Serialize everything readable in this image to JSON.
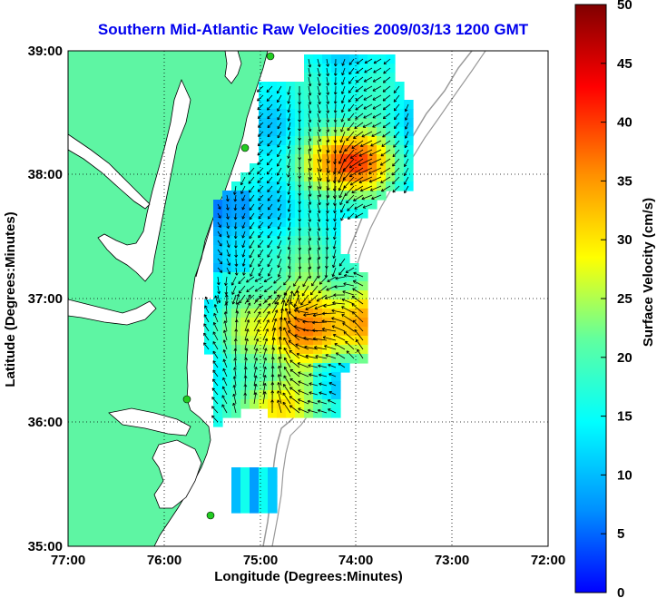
{
  "title": "Southern Mid-Atlantic Raw Velocities 2009/03/13 1200 GMT",
  "xaxis": {
    "label": "Longitude (Degrees:Minutes)",
    "ticks": [
      "77:00",
      "76:00",
      "75:00",
      "74:00",
      "73:00",
      "72:00"
    ],
    "range": [
      -77,
      -72
    ]
  },
  "yaxis": {
    "label": "Latitude (Degrees:Minutes)",
    "ticks": [
      "39:00",
      "38:00",
      "37:00",
      "36:00",
      "35:00"
    ],
    "range": [
      35,
      39
    ]
  },
  "colorbar": {
    "label": "Surface Velocity (cm/s)",
    "ticks": [
      "50",
      "45",
      "40",
      "35",
      "30",
      "25",
      "20",
      "15",
      "10",
      "5",
      "0"
    ],
    "range": [
      0,
      50
    ],
    "colormap": [
      "#0000ff",
      "#0090ff",
      "#00ffff",
      "#60ff9f",
      "#ffff00",
      "#ff9000",
      "#ff0000",
      "#800000"
    ]
  },
  "colors": {
    "land": "#5ef5a3",
    "water": "#ffffff",
    "coast": "#000000",
    "bathymetry": "#9a9a9a",
    "sites": "#22cc22",
    "title": "#0000ee"
  },
  "grid": "dotted",
  "vector_color": "#000000"
}
